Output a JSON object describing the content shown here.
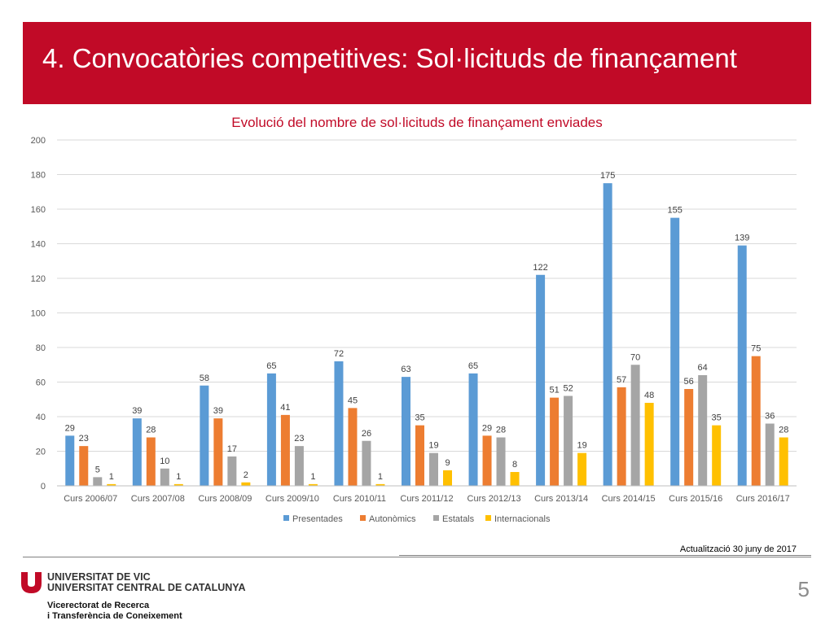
{
  "slide": {
    "title": "4. Convocatòries competitives: Sol·licituds de finançament",
    "update_note": "Actualització 30 juny de 2017",
    "page_number": "5"
  },
  "footer": {
    "university_line1": "UNIVERSITAT DE VIC",
    "university_line2": "UNIVERSITAT CENTRAL DE CATALUNYA",
    "vicerectorat_line1": "Vicerectorat de Recerca",
    "vicerectorat_line2": "i Transferència de Coneixement",
    "logo_color": "#c10a27"
  },
  "chart_data": {
    "type": "bar",
    "title": "Evolució del nombre de sol·licituds de finançament enviades",
    "xlabel": "",
    "ylabel": "",
    "ylim": [
      0,
      200
    ],
    "yticks": [
      0,
      20,
      40,
      60,
      80,
      100,
      120,
      140,
      160,
      180,
      200
    ],
    "grid": true,
    "legend_position": "bottom",
    "categories": [
      "Curs 2006/07",
      "Curs 2007/08",
      "Curs 2008/09",
      "Curs 2009/10",
      "Curs 2010/11",
      "Curs 2011/12",
      "Curs 2012/13",
      "Curs 2013/14",
      "Curs 2014/15",
      "Curs 2015/16",
      "Curs 2016/17"
    ],
    "series": [
      {
        "name": "Presentades",
        "color": "#5b9bd5",
        "values": [
          29,
          39,
          58,
          65,
          72,
          63,
          65,
          122,
          175,
          155,
          139
        ]
      },
      {
        "name": "Autonòmics",
        "color": "#ed7d31",
        "values": [
          23,
          28,
          39,
          41,
          45,
          35,
          29,
          51,
          57,
          56,
          75
        ]
      },
      {
        "name": "Estatals",
        "color": "#a5a5a5",
        "values": [
          5,
          10,
          17,
          23,
          26,
          19,
          28,
          52,
          70,
          64,
          36
        ]
      },
      {
        "name": "Internacionals",
        "color": "#ffc000",
        "values": [
          1,
          1,
          2,
          1,
          1,
          9,
          8,
          19,
          48,
          35,
          28
        ]
      }
    ]
  }
}
